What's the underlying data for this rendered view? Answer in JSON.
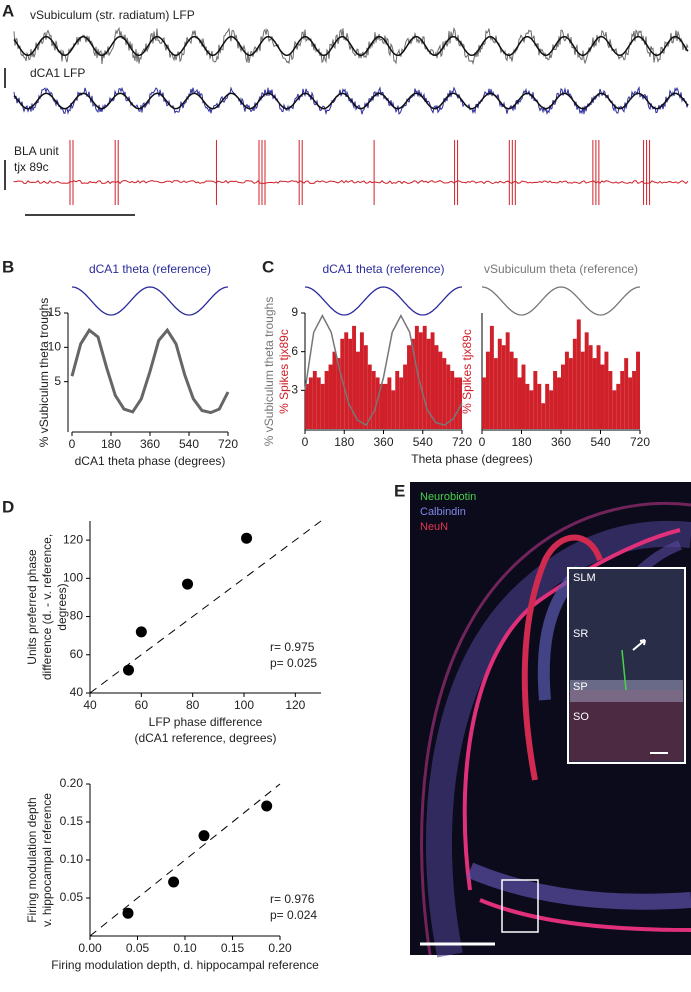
{
  "panel_labels": [
    "A",
    "B",
    "C",
    "D",
    "E"
  ],
  "panel_a": {
    "traces": [
      "vSubiculum (str. radiatum) LFP",
      "dCA1 LFP"
    ],
    "unit_label": [
      "BLA unit",
      "tjx 89c"
    ]
  },
  "panel_e": {
    "stains": [
      {
        "name": "Neurobiotin",
        "color": "#46d346"
      },
      {
        "name": "Calbindin",
        "color": "#8088e6"
      },
      {
        "name": "NeuN",
        "color": "#e3344e"
      }
    ],
    "layers": [
      "SLM",
      "SR",
      "SP",
      "SO"
    ]
  },
  "chart_data": [
    {
      "type": "line",
      "title": "dCA1 theta (reference)",
      "reference_color": "#2b2b9c",
      "ylabel": "% vSubiculum theta troughs",
      "xlabel": "dCA1 theta phase (degrees)",
      "x": [
        0,
        40,
        80,
        120,
        160,
        200,
        240,
        280,
        320,
        360,
        400,
        440,
        480,
        520,
        560,
        600,
        640,
        680,
        720
      ],
      "values": [
        5.8,
        10.5,
        12.5,
        11.5,
        7,
        3,
        1,
        0.6,
        2.5,
        6.5,
        11,
        12.5,
        10.5,
        6,
        2.5,
        0.8,
        0.5,
        1,
        3.5
      ],
      "color": "#666666",
      "xlim": [
        0,
        720
      ],
      "ylim": [
        0,
        15
      ],
      "xticks": [
        0,
        180,
        360,
        540,
        720
      ],
      "yticks": [
        5,
        10,
        15
      ]
    },
    {
      "type": "histogram",
      "title": "dCA1 theta (reference)",
      "reference_color": "#2b2b9c",
      "ylabel": "% Spikes tjx89c",
      "xlabel": "Theta phase (degrees)",
      "color": "#d0202a",
      "bins": [
        0,
        18,
        36,
        54,
        72,
        90,
        108,
        126,
        144,
        162,
        180,
        198,
        216,
        234,
        252,
        270,
        288,
        306,
        324,
        342,
        360,
        378,
        396,
        414,
        432,
        450,
        468,
        486,
        504,
        522,
        540,
        558,
        576,
        594,
        612,
        630,
        648,
        666,
        684,
        702,
        720
      ],
      "values": [
        3.5,
        4,
        4.5,
        4,
        3.5,
        4.5,
        5,
        6,
        5.5,
        7,
        7.5,
        7,
        8,
        6,
        7.5,
        6.5,
        5,
        4.5,
        4,
        3.5,
        3.5,
        4,
        3,
        4.5,
        4,
        5,
        6.5,
        7,
        8,
        7.5,
        8,
        7,
        7.5,
        6.5,
        6,
        5.5,
        5,
        4.5,
        4,
        4
      ],
      "overlay": {
        "name": "% vSubiculum theta troughs",
        "color": "#777777",
        "x": [
          0,
          40,
          80,
          120,
          160,
          200,
          240,
          280,
          320,
          360,
          400,
          440,
          480,
          520,
          560,
          600,
          640,
          680,
          720
        ],
        "values": [
          3,
          7.5,
          8.8,
          7.5,
          4.5,
          2,
          0.7,
          0.3,
          1.5,
          4,
          7.5,
          8.8,
          7.5,
          4,
          1.5,
          0.5,
          0.3,
          0.8,
          2
        ]
      },
      "xlim": [
        0,
        720
      ],
      "ylim": [
        0,
        9
      ],
      "xticks": [
        0,
        180,
        360,
        540,
        720
      ],
      "yticks": [
        3,
        6,
        9
      ]
    },
    {
      "type": "histogram",
      "title": "vSubiculum theta (reference)",
      "reference_color": "#777777",
      "ylabel": "% Spikes tjx89c",
      "color": "#d0202a",
      "bins": [
        0,
        18,
        36,
        54,
        72,
        90,
        108,
        126,
        144,
        162,
        180,
        198,
        216,
        234,
        252,
        270,
        288,
        306,
        324,
        342,
        360,
        378,
        396,
        414,
        432,
        450,
        468,
        486,
        504,
        522,
        540,
        558,
        576,
        594,
        612,
        630,
        648,
        666,
        684,
        702,
        720
      ],
      "values": [
        4,
        6,
        8,
        5.5,
        7,
        6.5,
        7.5,
        6,
        5.5,
        4,
        5,
        3.5,
        3,
        4.5,
        3.5,
        2,
        3.5,
        3,
        4.5,
        4,
        5,
        6,
        5.5,
        7,
        8.5,
        6,
        7.5,
        6.5,
        5.5,
        6.5,
        5,
        6,
        4.5,
        3,
        3.5,
        4.5,
        5.5,
        4,
        4.5,
        6
      ],
      "xlim": [
        0,
        720
      ],
      "ylim": [
        0,
        9
      ],
      "xticks": [
        0,
        180,
        360,
        540,
        720
      ]
    },
    {
      "type": "scatter",
      "xlabel": [
        "LFP phase difference",
        "(dCA1 reference, degrees)"
      ],
      "ylabel": [
        "Units preferred phase",
        "difference (d. - v. reference,",
        "degrees)"
      ],
      "x": [
        55,
        60,
        78,
        101
      ],
      "values": [
        52,
        72,
        97,
        121
      ],
      "color": "#000000",
      "annotations": [
        "r= 0.975",
        "p= 0.025"
      ],
      "xlim": [
        40,
        130
      ],
      "ylim": [
        40,
        130
      ],
      "xticks": [
        40,
        60,
        80,
        100,
        120
      ],
      "yticks": [
        40,
        60,
        80,
        100,
        120
      ]
    },
    {
      "type": "scatter",
      "xlabel": [
        "Firing modulation depth, d. hippocampal reference"
      ],
      "ylabel": [
        "Firing modulation depth",
        "v. hippocampal reference"
      ],
      "x": [
        0.04,
        0.088,
        0.12,
        0.186
      ],
      "values": [
        0.03,
        0.071,
        0.132,
        0.171
      ],
      "color": "#000000",
      "annotations": [
        "r= 0.976",
        "p= 0.024"
      ],
      "xlim": [
        0,
        0.2
      ],
      "ylim": [
        0,
        0.2
      ],
      "xticks": [
        {
          "value": 0,
          "label": "0.00"
        },
        0.05,
        {
          "value": 0.1,
          "label": "0.10"
        },
        0.15,
        {
          "value": 0.2,
          "label": "0.20"
        }
      ],
      "yticks": [
        0.05,
        {
          "value": 0.1,
          "label": "0.10"
        },
        0.15,
        {
          "value": 0.2,
          "label": "0.20"
        }
      ]
    }
  ]
}
